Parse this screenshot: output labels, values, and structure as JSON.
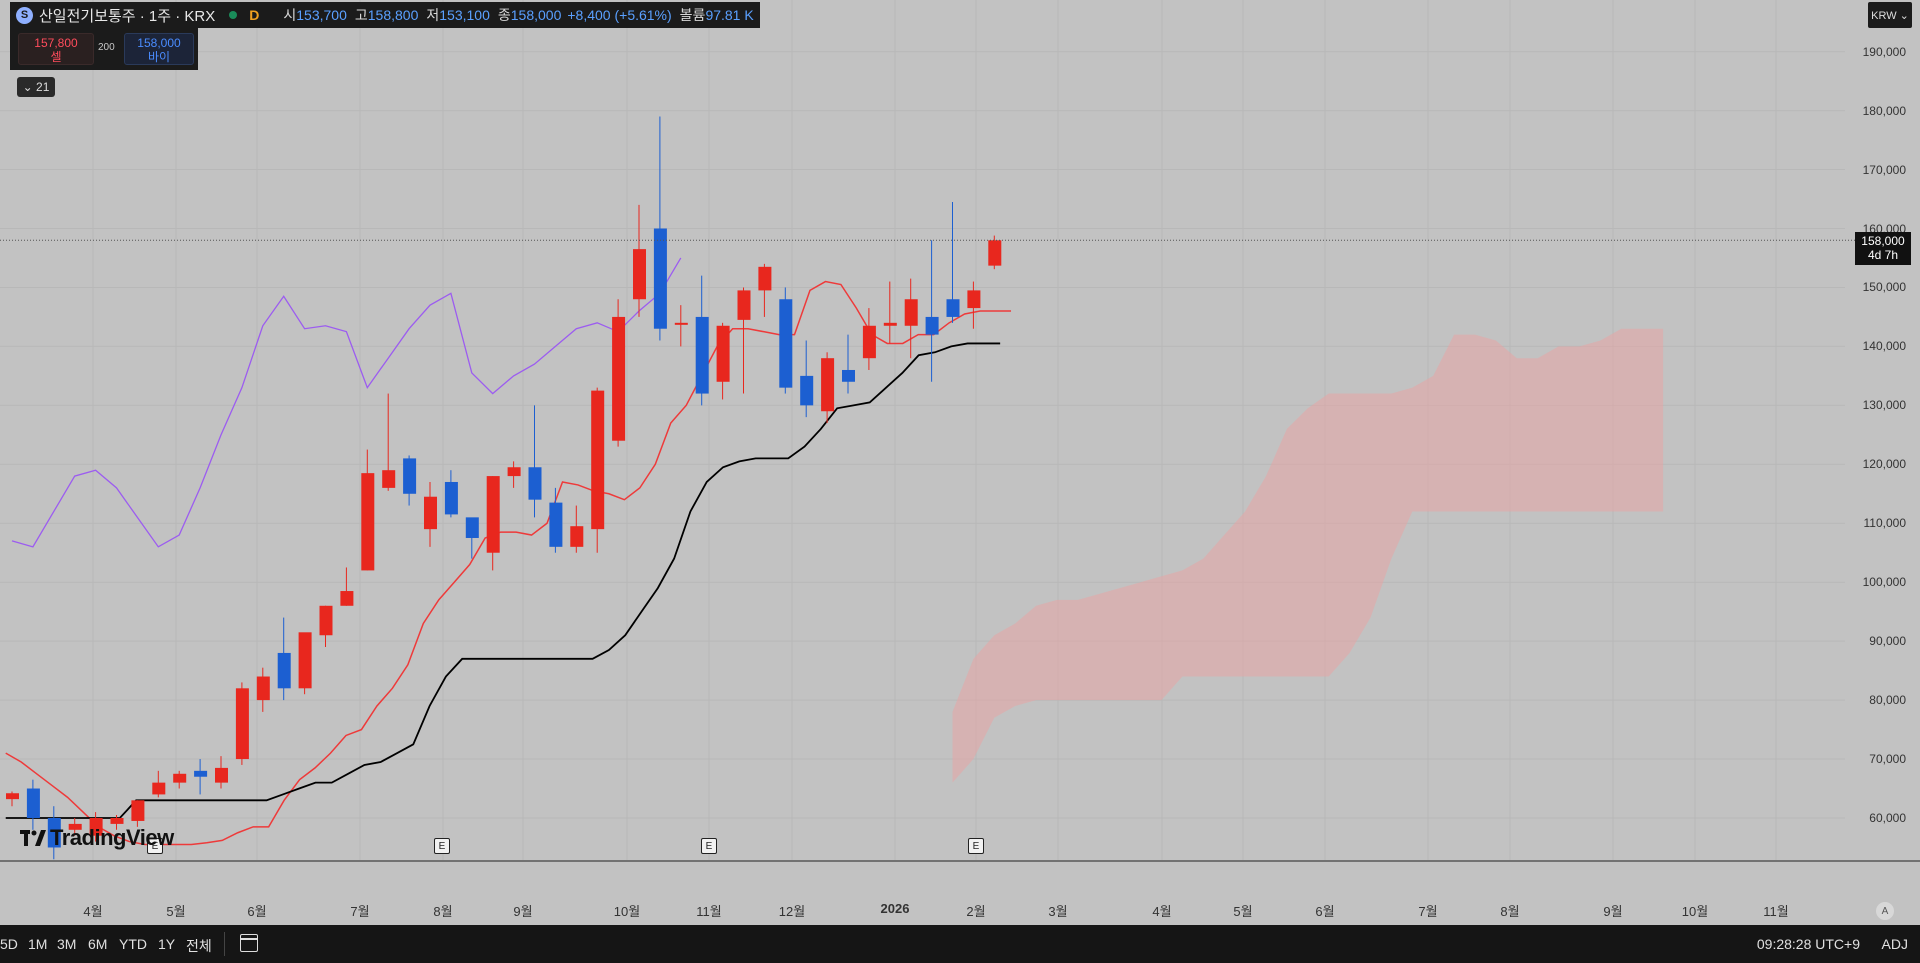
{
  "header": {
    "symbol": "산일전기보통주 · 1주 · KRX",
    "timeframe_badge": "D",
    "open_label": "시",
    "open": "153,700",
    "high_label": "고",
    "high": "158,800",
    "low_label": "저",
    "low": "153,100",
    "close_label": "종",
    "close": "158,000",
    "change": "+8,400 (+5.61%)",
    "volume_label": "볼륨",
    "volume": "97.81 K"
  },
  "trade": {
    "sell_price": "157,800",
    "sell_label": "셀",
    "spread": "200",
    "buy_price": "158,000",
    "buy_label": "바이"
  },
  "indicator_toggle": "⌄ 21",
  "currency": "KRW ⌄",
  "last_price": {
    "price": "158,000",
    "countdown": "4d 7h"
  },
  "earnings_marker": "E",
  "logo_text": "TradingView",
  "auto_scale_label": "A",
  "bottom": {
    "timeframes": [
      "5D",
      "1M",
      "3M",
      "6M",
      "YTD",
      "1Y",
      "전체"
    ],
    "clock": "09:28:28 UTC+9",
    "adj": "ADJ"
  },
  "colors": {
    "up": "#e8271e",
    "down": "#1c5fd1",
    "tenkan": "#ee3a3a",
    "kijun": "#000000",
    "lagging": "#9c5cf0",
    "cloud": "rgba(240,160,160,0.45)",
    "background": "#c2c2c2"
  },
  "chart_data": {
    "type": "candlestick",
    "indicator": "Ichimoku",
    "y_axis": {
      "ticks": [
        60000,
        70000,
        80000,
        90000,
        100000,
        110000,
        120000,
        130000,
        140000,
        150000,
        160000,
        170000,
        180000,
        190000
      ],
      "tick_labels": [
        "60,000",
        "70,000",
        "80,000",
        "90,000",
        "100,000",
        "110,000",
        "120,000",
        "130,000",
        "140,000",
        "150,000",
        "160,000",
        "170,000",
        "180,000",
        "190,000"
      ],
      "ylim": [
        54000,
        197000
      ]
    },
    "x_axis": {
      "labels": [
        "4월",
        "5월",
        "6월",
        "7월",
        "8월",
        "9월",
        "10월",
        "11월",
        "12월",
        "2026",
        "2월",
        "3월",
        "4월",
        "5월",
        "6월",
        "7월",
        "8월",
        "9월",
        "10월",
        "11월"
      ]
    },
    "candles": [
      {
        "o": 63200,
        "h": 64500,
        "l": 62000,
        "c": 64200
      },
      {
        "o": 65000,
        "h": 66500,
        "l": 58000,
        "c": 60000
      },
      {
        "o": 60000,
        "h": 62000,
        "l": 53000,
        "c": 55000
      },
      {
        "o": 58000,
        "h": 60000,
        "l": 57000,
        "c": 59000
      },
      {
        "o": 57000,
        "h": 61000,
        "l": 56000,
        "c": 60000
      },
      {
        "o": 59000,
        "h": 60500,
        "l": 58000,
        "c": 60000
      },
      {
        "o": 59500,
        "h": 63000,
        "l": 58500,
        "c": 63000
      },
      {
        "o": 64000,
        "h": 68000,
        "l": 63500,
        "c": 66000
      },
      {
        "o": 66000,
        "h": 68000,
        "l": 65000,
        "c": 67500
      },
      {
        "o": 68000,
        "h": 70000,
        "l": 64000,
        "c": 67000
      },
      {
        "o": 66000,
        "h": 70500,
        "l": 65000,
        "c": 68500
      },
      {
        "o": 70000,
        "h": 83000,
        "l": 69000,
        "c": 82000
      },
      {
        "o": 80000,
        "h": 85500,
        "l": 78000,
        "c": 84000
      },
      {
        "o": 88000,
        "h": 94000,
        "l": 80000,
        "c": 82000
      },
      {
        "o": 82000,
        "h": 91000,
        "l": 81000,
        "c": 91500
      },
      {
        "o": 91000,
        "h": 96000,
        "l": 89000,
        "c": 96000
      },
      {
        "o": 96000,
        "h": 102500,
        "l": 96000,
        "c": 98500
      },
      {
        "o": 102000,
        "h": 122500,
        "l": 102000,
        "c": 118500
      },
      {
        "o": 116000,
        "h": 132000,
        "l": 115500,
        "c": 119000
      },
      {
        "o": 121000,
        "h": 121500,
        "l": 113000,
        "c": 115000
      },
      {
        "o": 109000,
        "h": 117000,
        "l": 106000,
        "c": 114500
      },
      {
        "o": 117000,
        "h": 119000,
        "l": 111000,
        "c": 111500
      },
      {
        "o": 111000,
        "h": 110000,
        "l": 104000,
        "c": 107500
      },
      {
        "o": 105000,
        "h": 118000,
        "l": 102000,
        "c": 118000
      },
      {
        "o": 118000,
        "h": 120500,
        "l": 116000,
        "c": 119500
      },
      {
        "o": 119500,
        "h": 130000,
        "l": 111000,
        "c": 114000
      },
      {
        "o": 113500,
        "h": 116000,
        "l": 105000,
        "c": 106000
      },
      {
        "o": 106000,
        "h": 113000,
        "l": 105000,
        "c": 109500
      },
      {
        "o": 109000,
        "h": 133000,
        "l": 105000,
        "c": 132500
      },
      {
        "o": 124000,
        "h": 148000,
        "l": 123000,
        "c": 145000
      },
      {
        "o": 148000,
        "h": 164000,
        "l": 145000,
        "c": 156500
      },
      {
        "o": 160000,
        "h": 179000,
        "l": 141000,
        "c": 143000
      },
      {
        "o": 144000,
        "h": 147000,
        "l": 140000,
        "c": 144000
      },
      {
        "o": 145000,
        "h": 152000,
        "l": 130000,
        "c": 132000
      },
      {
        "o": 134000,
        "h": 144000,
        "l": 131000,
        "c": 143500
      },
      {
        "o": 144500,
        "h": 150000,
        "l": 132000,
        "c": 149500
      },
      {
        "o": 149500,
        "h": 154000,
        "l": 145000,
        "c": 153500
      },
      {
        "o": 148000,
        "h": 150000,
        "l": 132000,
        "c": 133000
      },
      {
        "o": 135000,
        "h": 141000,
        "l": 128000,
        "c": 130000
      },
      {
        "o": 129000,
        "h": 139000,
        "l": 127000,
        "c": 138000
      },
      {
        "o": 136000,
        "h": 142000,
        "l": 132000,
        "c": 134000
      },
      {
        "o": 138000,
        "h": 146500,
        "l": 136000,
        "c": 143500
      },
      {
        "o": 143500,
        "h": 151000,
        "l": 140500,
        "c": 144000
      },
      {
        "o": 143500,
        "h": 151500,
        "l": 138000,
        "c": 148000
      },
      {
        "o": 145000,
        "h": 158000,
        "l": 134000,
        "c": 142000
      },
      {
        "o": 148000,
        "h": 164500,
        "l": 144000,
        "c": 145000
      },
      {
        "o": 146500,
        "h": 151000,
        "l": 143000,
        "c": 149500
      },
      {
        "o": 153700,
        "h": 158800,
        "l": 153100,
        "c": 158000
      }
    ],
    "tenkan": [
      71000,
      69500,
      67500,
      65500,
      63500,
      61000,
      58500,
      57000,
      56000,
      55500,
      55500,
      55500,
      55500,
      55800,
      56200,
      57500,
      58500,
      58500,
      63000,
      66500,
      68500,
      71000,
      74000,
      75000,
      79000,
      82000,
      86000,
      93000,
      97000,
      100000,
      103000,
      107500,
      108500,
      108500,
      108000,
      110000,
      117000,
      116500,
      115500,
      115000,
      114000,
      116000,
      120000,
      127000,
      130000,
      135000,
      140000,
      143000,
      143000,
      142500,
      142000,
      142000,
      149500,
      151000,
      150500,
      146500,
      142000,
      140500,
      140500,
      142000,
      142000,
      144000,
      145500,
      146000,
      146000,
      146000
    ],
    "kijun": [
      60000,
      60000,
      60000,
      60000,
      60000,
      60000,
      60000,
      60000,
      63000,
      63000,
      63000,
      63000,
      63000,
      63000,
      63000,
      63000,
      63000,
      64000,
      65000,
      66000,
      66000,
      67500,
      69000,
      69500,
      71000,
      72500,
      79000,
      84000,
      87000,
      87000,
      87000,
      87000,
      87000,
      87000,
      87000,
      87000,
      87000,
      88500,
      91000,
      95000,
      99000,
      104000,
      112000,
      117000,
      119500,
      120500,
      121000,
      121000,
      121000,
      123000,
      126000,
      129500,
      130000,
      130500,
      133000,
      135500,
      138500,
      139000,
      140000,
      140500,
      140500,
      140500
    ],
    "lagging": [
      107000,
      106000,
      112000,
      118000,
      119000,
      116000,
      111000,
      106000,
      108000,
      116000,
      125000,
      133000,
      143500,
      148500,
      143000,
      143500,
      142500,
      133000,
      138000,
      143000,
      147000,
      149000,
      135500,
      132000,
      135000,
      137000,
      140000,
      143000,
      144000,
      142500,
      146000,
      149000,
      155000
    ],
    "cloud_a": [
      78000,
      87000,
      91000,
      93000,
      96000,
      97000,
      97000,
      98000,
      99000,
      100000,
      101000,
      102000,
      104000,
      108000,
      112000,
      118000,
      126000,
      129500,
      132000,
      132000,
      132000,
      132000,
      133000,
      135000,
      142000,
      142000,
      141000,
      138000,
      138000,
      140000,
      140000,
      141000,
      143000,
      143000,
      143000
    ],
    "cloud_b": [
      66000,
      70000,
      77000,
      79000,
      80000,
      80000,
      80000,
      80000,
      80000,
      80000,
      80000,
      84000,
      84000,
      84000,
      84000,
      84000,
      84000,
      84000,
      84000,
      88000,
      94000,
      104000,
      112000,
      112000,
      112000,
      112000,
      112000,
      112000,
      112000,
      112000,
      112000,
      112000,
      112000,
      112000,
      112000
    ]
  }
}
